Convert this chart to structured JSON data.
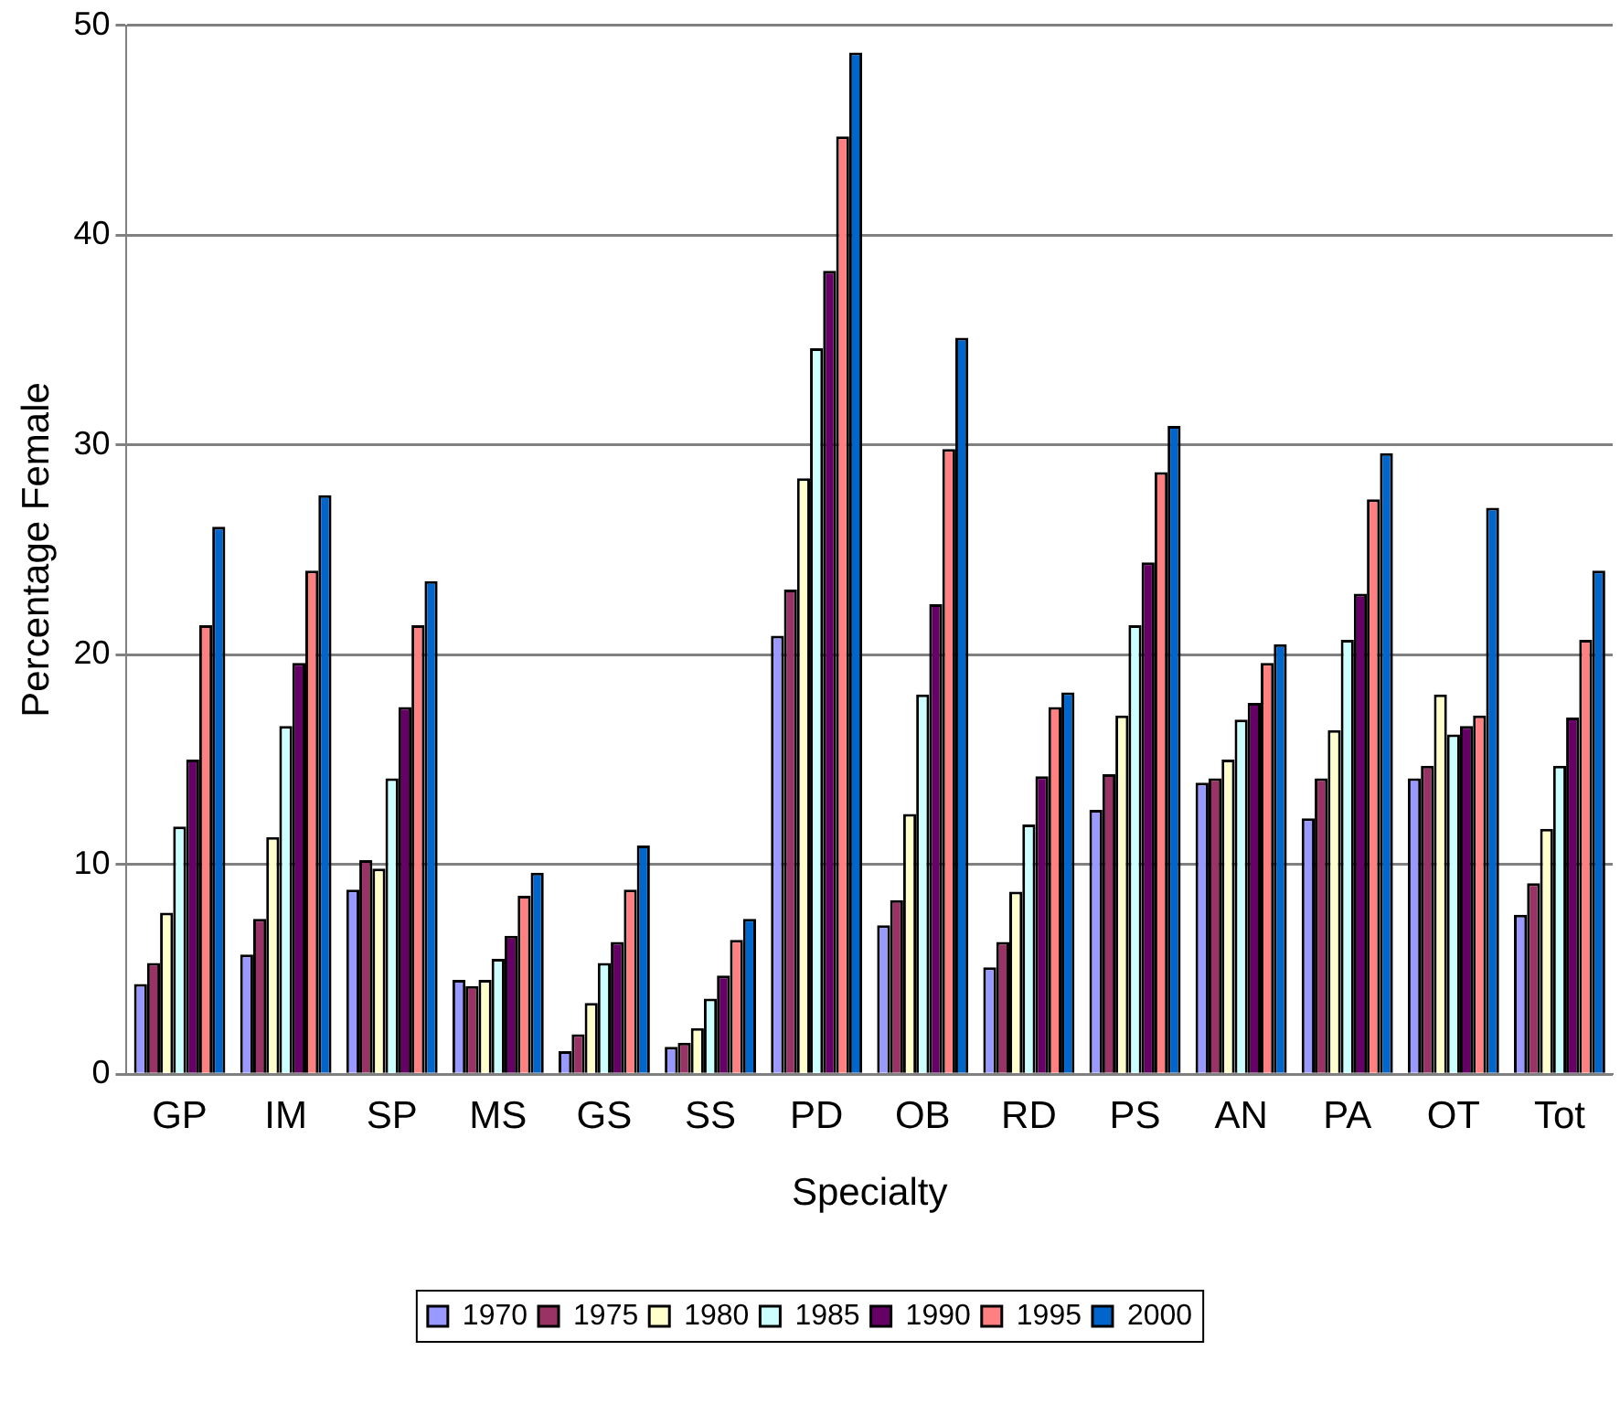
{
  "chart_data": {
    "type": "bar",
    "xlabel": "Specialty",
    "ylabel": "Percentage Female",
    "categories": [
      "GP",
      "IM",
      "SP",
      "MS",
      "GS",
      "SS",
      "PD",
      "OB",
      "RD",
      "PS",
      "AN",
      "PA",
      "OT",
      "Tot"
    ],
    "series": [
      {
        "name": "1970",
        "color": "#9999ff",
        "values": [
          4.3,
          5.7,
          8.8,
          4.5,
          1.1,
          1.3,
          20.9,
          7.1,
          5.1,
          12.6,
          13.9,
          12.2,
          14.1,
          7.6
        ]
      },
      {
        "name": "1975",
        "color": "#993366",
        "values": [
          5.3,
          7.4,
          10.2,
          4.2,
          1.9,
          1.5,
          23.1,
          8.3,
          6.3,
          14.3,
          14.1,
          14.1,
          14.7,
          9.1
        ]
      },
      {
        "name": "1980",
        "color": "#ffffcc",
        "values": [
          7.7,
          11.3,
          9.8,
          4.5,
          3.4,
          2.2,
          28.4,
          12.4,
          8.7,
          17.1,
          15.0,
          16.4,
          18.1,
          11.7
        ]
      },
      {
        "name": "1985",
        "color": "#ccffff",
        "values": [
          11.8,
          16.6,
          14.1,
          5.5,
          5.3,
          3.6,
          34.6,
          18.1,
          11.9,
          21.4,
          16.9,
          20.7,
          16.2,
          14.7
        ]
      },
      {
        "name": "1990",
        "color": "#660066",
        "values": [
          15.0,
          19.6,
          17.5,
          6.6,
          6.3,
          4.7,
          38.3,
          22.4,
          14.2,
          24.4,
          17.7,
          22.9,
          16.6,
          17.0
        ]
      },
      {
        "name": "1995",
        "color": "#ff8080",
        "values": [
          21.4,
          24.0,
          21.4,
          8.5,
          8.8,
          6.4,
          44.7,
          29.8,
          17.5,
          28.7,
          19.6,
          27.4,
          17.1,
          20.7
        ]
      },
      {
        "name": "2000",
        "color": "#0066cc",
        "values": [
          26.1,
          27.6,
          23.5,
          9.6,
          10.9,
          7.4,
          48.7,
          35.1,
          18.2,
          30.9,
          20.5,
          29.6,
          27.0,
          24.0
        ]
      }
    ],
    "ylim": [
      0,
      50
    ],
    "yticks": [
      0,
      10,
      20,
      30,
      40,
      50
    ],
    "grid": "y",
    "legend": "bottom"
  }
}
